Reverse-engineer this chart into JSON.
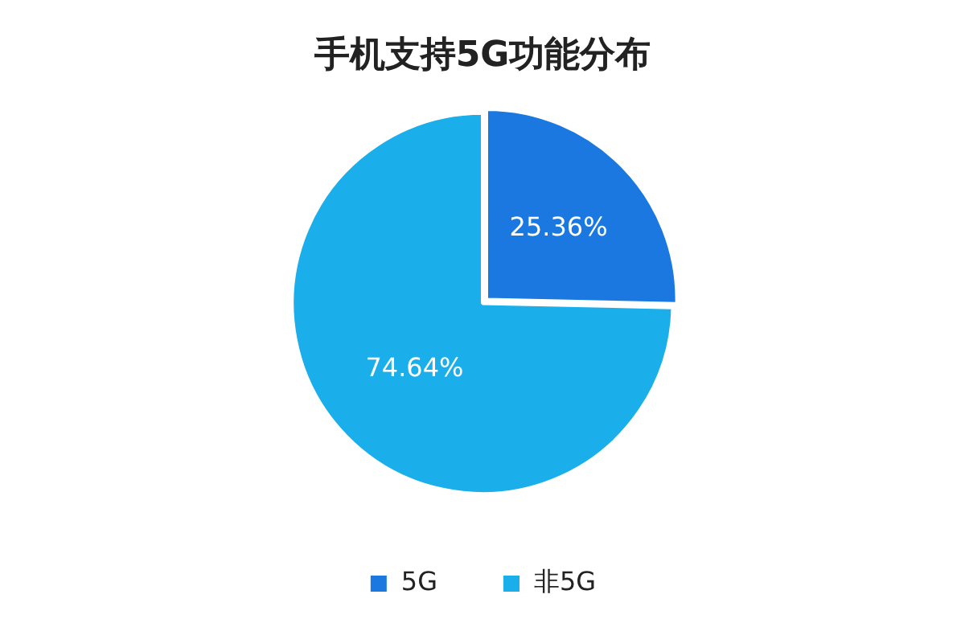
{
  "chart_data": {
    "type": "pie",
    "title": "手机支持5G功能分布",
    "categories": [
      "5G",
      "非5G"
    ],
    "values": [
      25.36,
      74.64
    ],
    "colors": [
      "#1a78e0",
      "#1aaeea"
    ],
    "value_labels": [
      "25.36%",
      "74.64%"
    ],
    "legend": "bottom"
  }
}
